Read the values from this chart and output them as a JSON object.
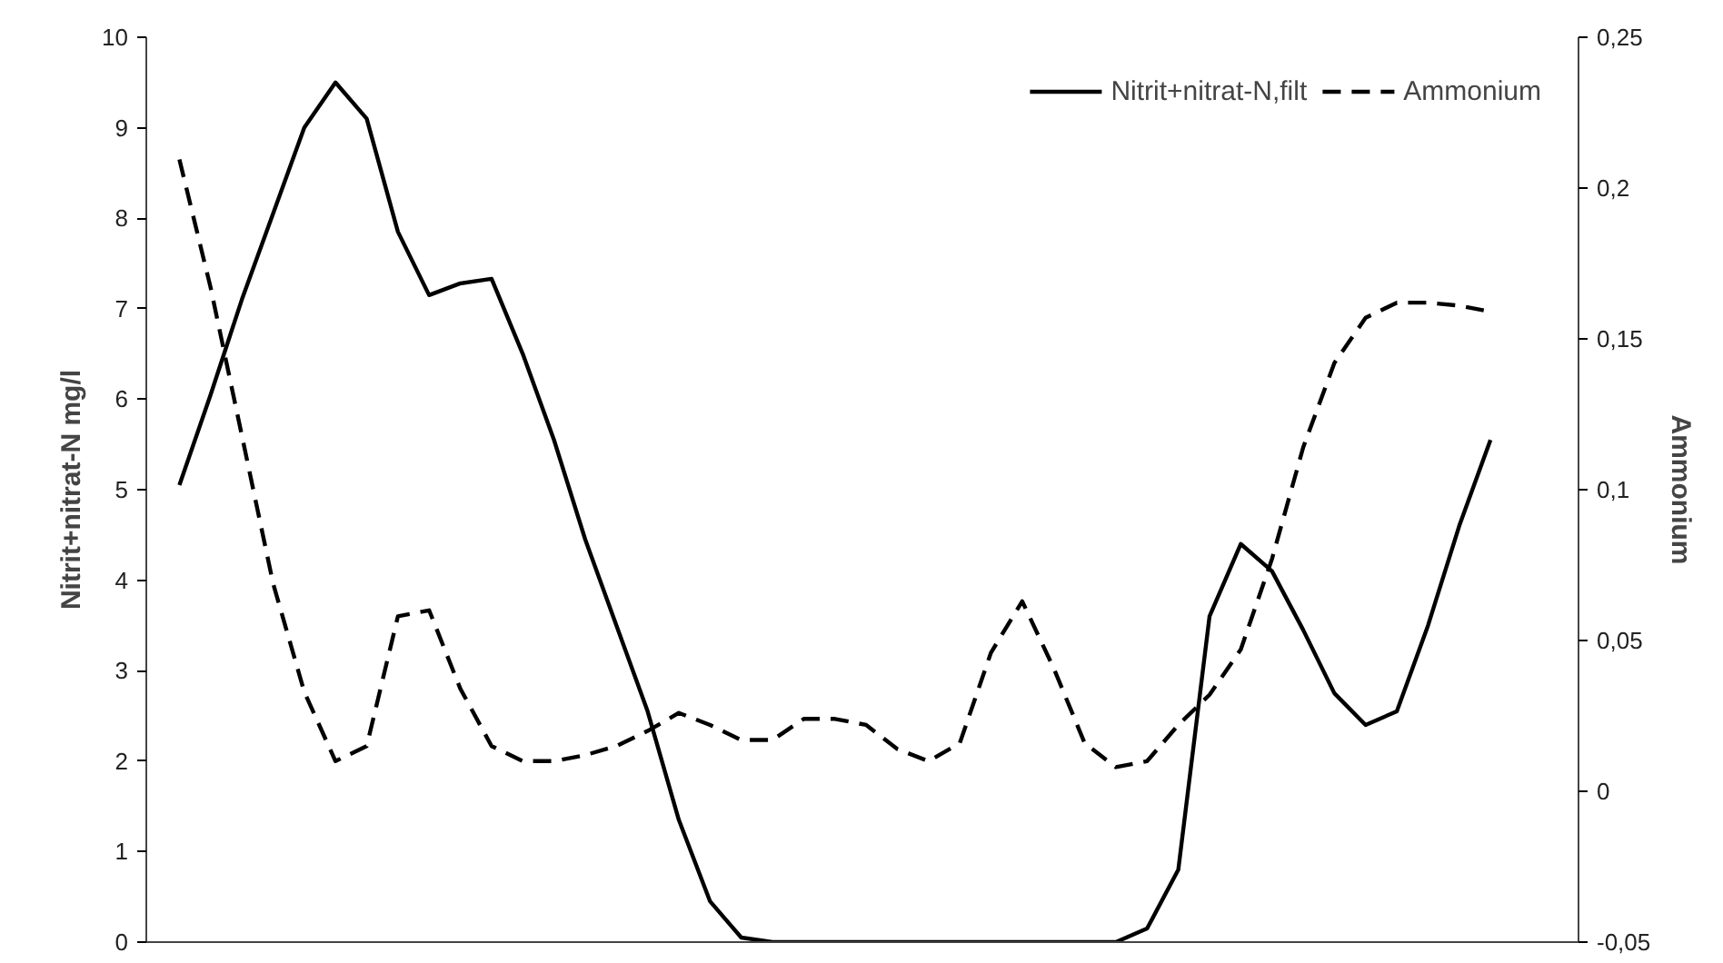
{
  "chart_data": {
    "type": "line",
    "ylabel": "Nitrit+nitrat-N mg/l",
    "y2label": "Ammonium",
    "categories": [
      null,
      null,
      null,
      null,
      null,
      null,
      null,
      null,
      null,
      null,
      null,
      null,
      null,
      null,
      null,
      null,
      null,
      null,
      null,
      null,
      null,
      null,
      null,
      null,
      null,
      null,
      null,
      null,
      null,
      null,
      null,
      null,
      null,
      null,
      null,
      null,
      null,
      null,
      null,
      null,
      null,
      null,
      null
    ],
    "ylim": [
      0,
      10
    ],
    "yticks": [
      0,
      1,
      2,
      3,
      4,
      5,
      6,
      7,
      8,
      9,
      10
    ],
    "y2lim": [
      -0.05,
      0.25
    ],
    "y2ticks": [
      {
        "value": -0.05,
        "label": "-0,05"
      },
      0,
      {
        "value": 0.05,
        "label": "0,05"
      },
      {
        "value": 0.1,
        "label": "0,1"
      },
      {
        "value": 0.15,
        "label": "0,15"
      },
      {
        "value": 0.2,
        "label": "0,2"
      },
      {
        "value": 0.25,
        "label": "0,25"
      }
    ],
    "grid": false,
    "legend": "top right",
    "tick_labels": "y",
    "series": [
      {
        "name": "Nitrit+nitrat-N,filt",
        "color": "#000000",
        "line_style": "solid",
        "values": [
          5.05,
          6.05,
          7.1,
          8.05,
          9.0,
          9.5,
          9.1,
          7.85,
          7.15,
          7.28,
          7.33,
          6.5,
          5.55,
          4.45,
          3.5,
          2.55,
          1.35,
          0.45,
          0.05,
          0,
          0,
          0,
          0,
          0,
          0,
          0,
          0,
          0,
          0,
          0,
          0,
          0.15,
          0.8,
          3.6,
          4.4,
          4.1,
          3.45,
          2.75,
          2.4,
          2.55,
          3.5,
          4.6,
          5.55
        ]
      },
      {
        "name": "Ammonium",
        "color": "#000000",
        "line_style": "dashed",
        "axis": "y2",
        "values": [
          0.2095,
          0.167,
          0.118,
          0.069,
          0.033,
          0.01,
          0.015,
          0.058,
          0.06,
          0.034,
          0.015,
          0.01,
          0.01,
          0.012,
          0.015,
          0.02,
          0.026,
          0.022,
          0.017,
          0.017,
          0.024,
          0.024,
          0.022,
          0.014,
          0.01,
          0.016,
          0.046,
          0.063,
          0.041,
          0.016,
          0.008,
          0.01,
          0.022,
          0.032,
          0.047,
          0.077,
          0.114,
          0.142,
          0.157,
          0.162,
          0.162,
          0.161,
          0.159
        ]
      }
    ]
  }
}
